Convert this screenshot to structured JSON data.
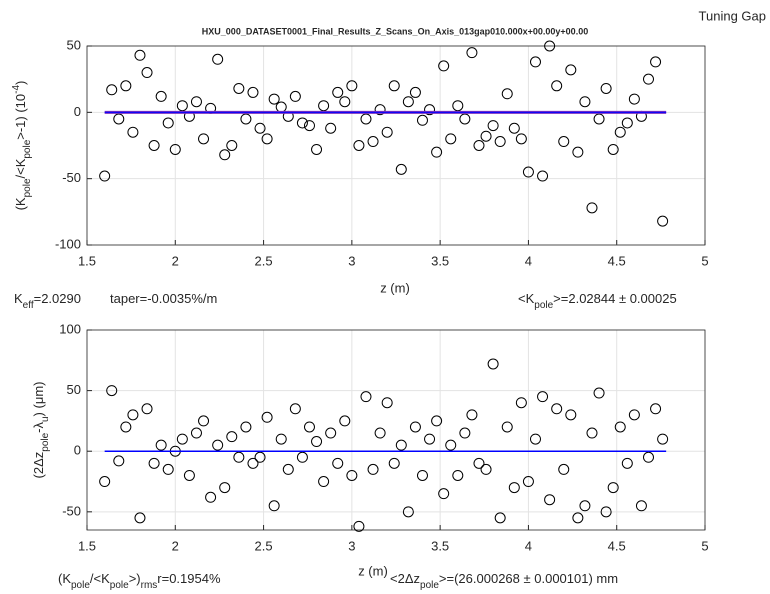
{
  "window_label": "Tuning Gap",
  "chart_data": [
    {
      "type": "scatter",
      "title": "HXU_000_DATASET0001_Final_Results_Z_Scans_On_Axis_013gap010.000x+00.00y+00.00",
      "xlabel": "z (m)",
      "ylabel": [
        "(K",
        {
          "sub": "pole"
        },
        "/<K",
        {
          "sub": "pole"
        },
        ">-1) (10",
        {
          "sup": "-4"
        },
        ")"
      ],
      "annotations": [
        [
          "K",
          {
            "sub": "eff"
          },
          "=2.0290"
        ],
        [
          "taper=-0.0035%/m"
        ],
        [
          "<K",
          {
            "sub": "pole"
          },
          ">=2.02844 ± 0.00025"
        ]
      ],
      "xlim": [
        1.5,
        5
      ],
      "ylim": [
        -100,
        50
      ],
      "xticks": [
        1.5,
        2,
        2.5,
        3,
        3.5,
        4,
        4.5,
        5
      ],
      "yticks": [
        -100,
        -50,
        0,
        50
      ],
      "grid": true,
      "marker_color": "#000000",
      "x": [
        1.6,
        1.64,
        1.68,
        1.72,
        1.76,
        1.8,
        1.84,
        1.88,
        1.92,
        1.96,
        2,
        2.04,
        2.08,
        2.12,
        2.16,
        2.2,
        2.24,
        2.28,
        2.32,
        2.36,
        2.4,
        2.44,
        2.48,
        2.52,
        2.56,
        2.6,
        2.64,
        2.68,
        2.72,
        2.76,
        2.8,
        2.84,
        2.88,
        2.92,
        2.96,
        3,
        3.04,
        3.08,
        3.12,
        3.16,
        3.2,
        3.24,
        3.28,
        3.32,
        3.36,
        3.4,
        3.44,
        3.48,
        3.52,
        3.56,
        3.6,
        3.64,
        3.68,
        3.72,
        3.76,
        3.8,
        3.84,
        3.88,
        3.92,
        3.96,
        4,
        4.04,
        4.08,
        4.12,
        4.16,
        4.2,
        4.24,
        4.28,
        4.32,
        4.36,
        4.4,
        4.44,
        4.48,
        4.52,
        4.56,
        4.6,
        4.64,
        4.68,
        4.72,
        4.76
      ],
      "y": [
        -48,
        17,
        -5,
        20,
        -15,
        43,
        30,
        -25,
        12,
        -8,
        -28,
        5,
        -3,
        8,
        -20,
        3,
        40,
        -32,
        -25,
        18,
        -5,
        15,
        -12,
        -20,
        10,
        4,
        -3,
        12,
        -8,
        -10,
        -28,
        5,
        -12,
        15,
        8,
        20,
        -25,
        -5,
        -22,
        2,
        -15,
        20,
        -43,
        8,
        15,
        -6,
        2,
        -30,
        35,
        -20,
        5,
        -5,
        45,
        -25,
        -18,
        -10,
        -22,
        14,
        -12,
        -20,
        -45,
        38,
        -48,
        50,
        20,
        -22,
        32,
        -30,
        8,
        -72,
        -5,
        18,
        -28,
        -15,
        -8,
        10,
        -3,
        25,
        38,
        -82
      ],
      "lines": [
        {
          "x": [
            1.6,
            4.78
          ],
          "y": [
            0,
            0
          ],
          "color": "#7b2fbe",
          "width": 3
        },
        {
          "x": [
            1.6,
            4.78
          ],
          "y": [
            0,
            0
          ],
          "color": "#0000ff",
          "width": 1
        }
      ]
    },
    {
      "type": "scatter",
      "xlabel": "z (m)",
      "ylabel": [
        "(2Δz",
        {
          "sub": "pole"
        },
        "-λ",
        {
          "sub": "u"
        },
        ") (μm)"
      ],
      "annotations": [
        [
          "(K",
          {
            "sub": "pole"
          },
          "/<K",
          {
            "sub": "pole"
          },
          ">)",
          {
            "sub": "rms"
          },
          "r=0.1954%"
        ],
        [
          "<2Δz",
          {
            "sub": "pole"
          },
          ">=(26.000268 ± 0.000101) mm"
        ]
      ],
      "xlim": [
        1.5,
        5
      ],
      "ylim": [
        -65,
        100
      ],
      "xticks": [
        1.5,
        2,
        2.5,
        3,
        3.5,
        4,
        4.5,
        5
      ],
      "yticks": [
        -50,
        0,
        50,
        100
      ],
      "grid": true,
      "marker_color": "#000000",
      "x": [
        1.6,
        1.64,
        1.68,
        1.72,
        1.76,
        1.8,
        1.84,
        1.88,
        1.92,
        1.96,
        2,
        2.04,
        2.08,
        2.12,
        2.16,
        2.2,
        2.24,
        2.28,
        2.32,
        2.36,
        2.4,
        2.44,
        2.48,
        2.52,
        2.56,
        2.6,
        2.64,
        2.68,
        2.72,
        2.76,
        2.8,
        2.84,
        2.88,
        2.92,
        2.96,
        3,
        3.04,
        3.08,
        3.12,
        3.16,
        3.2,
        3.24,
        3.28,
        3.32,
        3.36,
        3.4,
        3.44,
        3.48,
        3.52,
        3.56,
        3.6,
        3.64,
        3.68,
        3.72,
        3.76,
        3.8,
        3.84,
        3.88,
        3.92,
        3.96,
        4,
        4.04,
        4.08,
        4.12,
        4.16,
        4.2,
        4.24,
        4.28,
        4.32,
        4.36,
        4.4,
        4.44,
        4.48,
        4.52,
        4.56,
        4.6,
        4.64,
        4.68,
        4.72,
        4.76
      ],
      "y": [
        -25,
        50,
        -8,
        20,
        30,
        -55,
        35,
        -10,
        5,
        -15,
        0,
        10,
        -20,
        15,
        25,
        -38,
        5,
        -30,
        12,
        -5,
        20,
        -10,
        -5,
        28,
        -45,
        10,
        -15,
        35,
        -5,
        20,
        8,
        -25,
        15,
        -10,
        25,
        -20,
        -62,
        45,
        -15,
        15,
        40,
        -10,
        5,
        -50,
        20,
        -20,
        10,
        25,
        -35,
        5,
        -20,
        15,
        30,
        -10,
        -15,
        72,
        -55,
        20,
        -30,
        40,
        -25,
        10,
        45,
        -40,
        35,
        -15,
        30,
        -55,
        -45,
        15,
        48,
        -50,
        -30,
        20,
        -10,
        30,
        -45,
        -5,
        35,
        10
      ],
      "lines": [
        {
          "x": [
            1.6,
            4.78
          ],
          "y": [
            0,
            0
          ],
          "color": "#0000ff",
          "width": 1.5
        }
      ]
    }
  ]
}
